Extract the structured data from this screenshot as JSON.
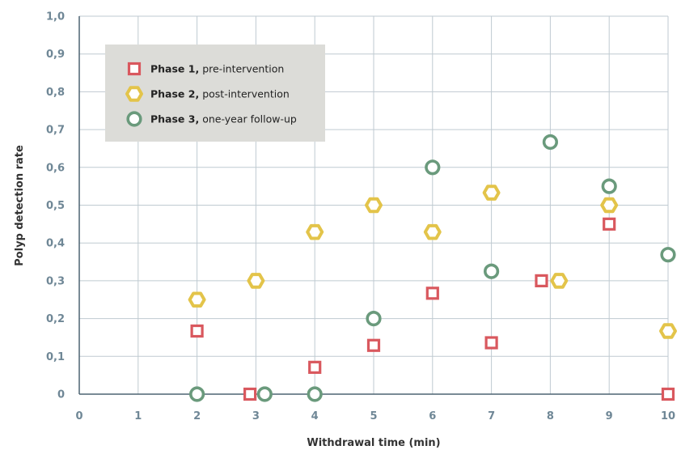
{
  "chart_data": {
    "type": "scatter",
    "xlabel": "Withdrawal time (min)",
    "ylabel": "Polyp detection rate",
    "xlim": [
      0,
      10
    ],
    "ylim": [
      0,
      1
    ],
    "x_ticks": [
      "0",
      "1",
      "2",
      "3",
      "4",
      "5",
      "6",
      "7",
      "8",
      "9",
      "10"
    ],
    "y_ticks": [
      "0",
      "0,1",
      "0,2",
      "0,3",
      "0,4",
      "0,5",
      "0,6",
      "0,7",
      "0,8",
      "0,9",
      "1,0"
    ],
    "grid": true,
    "legend_position": "top-left",
    "series": [
      {
        "name_bold": "Phase 1,",
        "name_rest": " pre-intervention",
        "marker": "square",
        "color": "#d9585e",
        "points": [
          {
            "x": 2,
            "y": 0.167
          },
          {
            "x": 2.9,
            "y": 0.0
          },
          {
            "x": 4,
            "y": 0.071
          },
          {
            "x": 5,
            "y": 0.129
          },
          {
            "x": 6,
            "y": 0.267
          },
          {
            "x": 7,
            "y": 0.136
          },
          {
            "x": 7.85,
            "y": 0.3
          },
          {
            "x": 9,
            "y": 0.45
          },
          {
            "x": 10,
            "y": 0.0
          }
        ]
      },
      {
        "name_bold": "Phase 2,",
        "name_rest": " post-intervention",
        "marker": "hexagon",
        "color": "#e3c44a",
        "points": [
          {
            "x": 2,
            "y": 0.25
          },
          {
            "x": 3,
            "y": 0.3
          },
          {
            "x": 4,
            "y": 0.429
          },
          {
            "x": 5,
            "y": 0.5
          },
          {
            "x": 6,
            "y": 0.429
          },
          {
            "x": 7,
            "y": 0.533
          },
          {
            "x": 8.15,
            "y": 0.3
          },
          {
            "x": 9,
            "y": 0.5
          },
          {
            "x": 10,
            "y": 0.167
          }
        ]
      },
      {
        "name_bold": "Phase 3,",
        "name_rest": " one-year follow-up",
        "marker": "circle",
        "color": "#6a9a7c",
        "points": [
          {
            "x": 2,
            "y": 0.0
          },
          {
            "x": 3.15,
            "y": 0.0
          },
          {
            "x": 4,
            "y": 0.0
          },
          {
            "x": 5,
            "y": 0.2
          },
          {
            "x": 6,
            "y": 0.6
          },
          {
            "x": 7,
            "y": 0.325
          },
          {
            "x": 8,
            "y": 0.667
          },
          {
            "x": 9,
            "y": 0.55
          },
          {
            "x": 10,
            "y": 0.369
          }
        ]
      }
    ]
  },
  "colors": {
    "grid": "#bfcad1",
    "axis": "#4d6472",
    "legend_bg": "#dcdcd8"
  }
}
